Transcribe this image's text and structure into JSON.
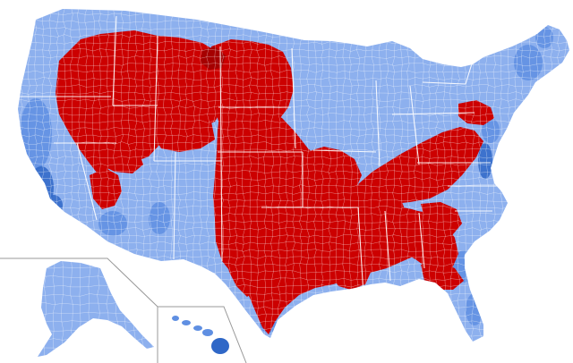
{
  "map": {
    "palette": {
      "dem_light": "#8db0ee",
      "dem_mid": "#5f8fe2",
      "dem_dark": "#2f67c7",
      "rep": "#cc0000",
      "rep_dark": "#a50000",
      "boundary": "#ffffff",
      "inset_line": "#9a9a9a",
      "background": "#ffffff"
    },
    "regions": {
      "contiguous_us": "contiguous-us-map",
      "alaska": "alaska-inset",
      "hawaii": "hawaii-inset"
    }
  }
}
